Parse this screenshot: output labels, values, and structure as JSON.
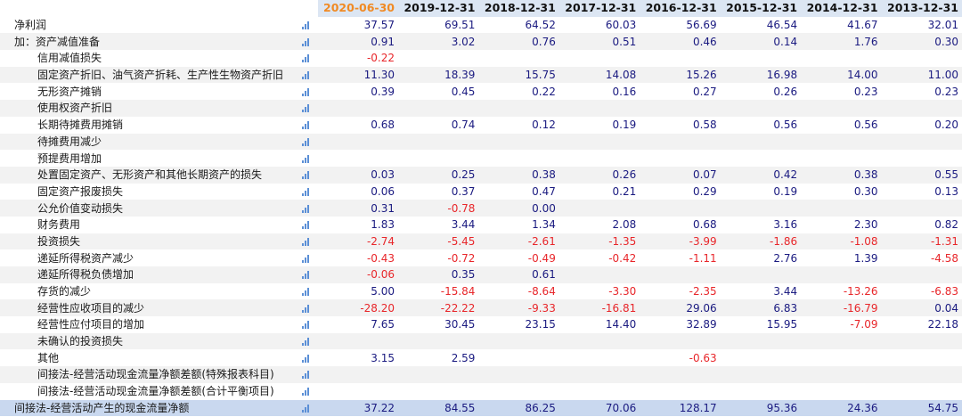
{
  "dates": [
    "2020-06-30",
    "2019-12-31",
    "2018-12-31",
    "2017-12-31",
    "2016-12-31",
    "2015-12-31",
    "2014-12-31",
    "2013-12-31"
  ],
  "rows": [
    {
      "label": "净利润",
      "indent": 0,
      "values": [
        "37.57",
        "69.51",
        "64.52",
        "60.03",
        "56.69",
        "46.54",
        "41.67",
        "32.01"
      ]
    },
    {
      "label": "加：资产减值准备",
      "indent": 0,
      "values": [
        "0.91",
        "3.02",
        "0.76",
        "0.51",
        "0.46",
        "0.14",
        "1.76",
        "0.30"
      ]
    },
    {
      "label": "信用减值损失",
      "indent": 1,
      "values": [
        "-0.22",
        "",
        "",
        "",
        "",
        "",
        "",
        ""
      ]
    },
    {
      "label": "固定资产折旧、油气资产折耗、生产性生物资产折旧",
      "indent": 1,
      "values": [
        "11.30",
        "18.39",
        "15.75",
        "14.08",
        "15.26",
        "16.98",
        "14.00",
        "11.00"
      ]
    },
    {
      "label": "无形资产摊销",
      "indent": 1,
      "values": [
        "0.39",
        "0.45",
        "0.22",
        "0.16",
        "0.27",
        "0.26",
        "0.23",
        "0.23"
      ]
    },
    {
      "label": "使用权资产折旧",
      "indent": 1,
      "values": [
        "",
        "",
        "",
        "",
        "",
        "",
        "",
        ""
      ]
    },
    {
      "label": "长期待摊费用摊销",
      "indent": 1,
      "values": [
        "0.68",
        "0.74",
        "0.12",
        "0.19",
        "0.58",
        "0.56",
        "0.56",
        "0.20"
      ]
    },
    {
      "label": "待摊费用减少",
      "indent": 1,
      "values": [
        "",
        "",
        "",
        "",
        "",
        "",
        "",
        ""
      ]
    },
    {
      "label": "预提费用增加",
      "indent": 1,
      "values": [
        "",
        "",
        "",
        "",
        "",
        "",
        "",
        ""
      ]
    },
    {
      "label": "处置固定资产、无形资产和其他长期资产的损失",
      "indent": 1,
      "values": [
        "0.03",
        "0.25",
        "0.38",
        "0.26",
        "0.07",
        "0.42",
        "0.38",
        "0.55"
      ]
    },
    {
      "label": "固定资产报废损失",
      "indent": 1,
      "values": [
        "0.06",
        "0.37",
        "0.47",
        "0.21",
        "0.29",
        "0.19",
        "0.30",
        "0.13"
      ]
    },
    {
      "label": "公允价值变动损失",
      "indent": 1,
      "values": [
        "0.31",
        "-0.78",
        "0.00",
        "",
        "",
        "",
        "",
        ""
      ]
    },
    {
      "label": "财务费用",
      "indent": 1,
      "values": [
        "1.83",
        "3.44",
        "1.34",
        "2.08",
        "0.68",
        "3.16",
        "2.30",
        "0.82"
      ]
    },
    {
      "label": "投资损失",
      "indent": 1,
      "values": [
        "-2.74",
        "-5.45",
        "-2.61",
        "-1.35",
        "-3.99",
        "-1.86",
        "-1.08",
        "-1.31"
      ]
    },
    {
      "label": "递延所得税资产减少",
      "indent": 1,
      "values": [
        "-0.43",
        "-0.72",
        "-0.49",
        "-0.42",
        "-1.11",
        "2.76",
        "1.39",
        "-4.58"
      ]
    },
    {
      "label": "递延所得税负债增加",
      "indent": 1,
      "values": [
        "-0.06",
        "0.35",
        "0.61",
        "",
        "",
        "",
        "",
        ""
      ]
    },
    {
      "label": "存货的减少",
      "indent": 1,
      "values": [
        "5.00",
        "-15.84",
        "-8.64",
        "-3.30",
        "-2.35",
        "3.44",
        "-13.26",
        "-6.83"
      ]
    },
    {
      "label": "经营性应收项目的减少",
      "indent": 1,
      "values": [
        "-28.20",
        "-22.22",
        "-9.33",
        "-16.81",
        "29.06",
        "6.83",
        "-16.79",
        "0.04"
      ]
    },
    {
      "label": "经营性应付项目的增加",
      "indent": 1,
      "values": [
        "7.65",
        "30.45",
        "23.15",
        "14.40",
        "32.89",
        "15.95",
        "-7.09",
        "22.18"
      ]
    },
    {
      "label": "未确认的投资损失",
      "indent": 1,
      "values": [
        "",
        "",
        "",
        "",
        "",
        "",
        "",
        ""
      ]
    },
    {
      "label": "其他",
      "indent": 1,
      "values": [
        "3.15",
        "2.59",
        "",
        "",
        "-0.63",
        "",
        "",
        ""
      ]
    },
    {
      "label": "间接法-经营活动现金流量净额差额(特殊报表科目)",
      "indent": 1,
      "values": [
        "",
        "",
        "",
        "",
        "",
        "",
        "",
        ""
      ]
    },
    {
      "label": "间接法-经营活动现金流量净额差额(合计平衡项目)",
      "indent": 1,
      "values": [
        "",
        "",
        "",
        "",
        "",
        "",
        "",
        ""
      ]
    },
    {
      "label": "间接法-经营活动产生的现金流量净额",
      "indent": 0,
      "total": true,
      "values": [
        "37.22",
        "84.55",
        "86.25",
        "70.06",
        "128.17",
        "95.36",
        "24.36",
        "54.75"
      ]
    }
  ],
  "icon": "bar-chart-icon",
  "colors": {
    "positive": "#1a1a80",
    "negative": "#e8262a",
    "header_bg": "#dce6f3",
    "highlight_date": "#f08a24",
    "total_bg": "#c9d8ef"
  }
}
